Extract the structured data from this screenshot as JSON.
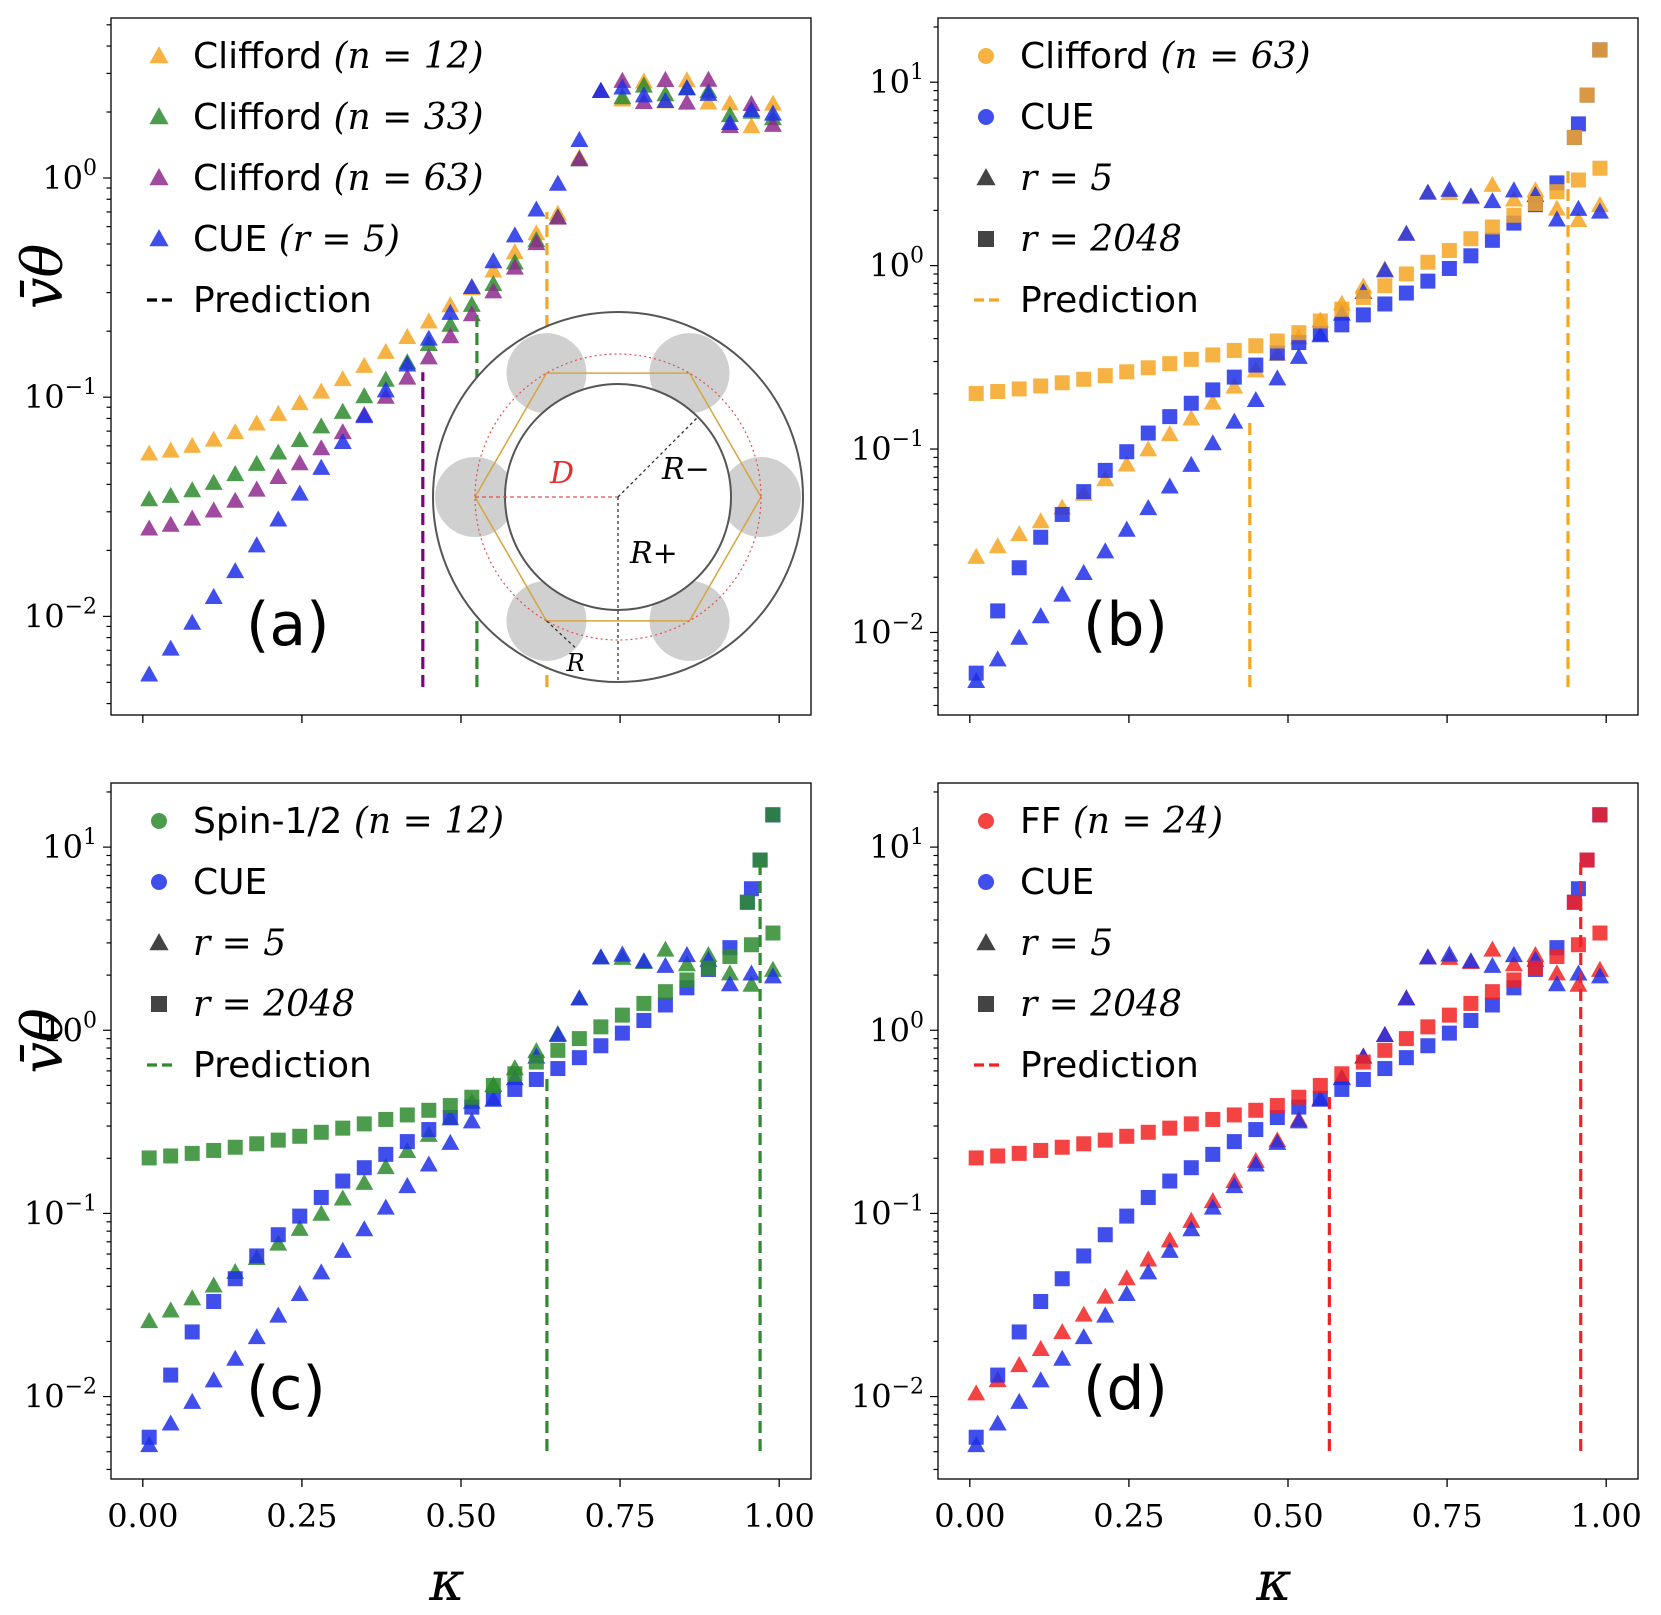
{
  "figure": {
    "ylabel": "v̄θ",
    "xlabel": "κ",
    "x_ticks": [
      "0.00",
      "0.25",
      "0.50",
      "0.75",
      "1.00"
    ]
  },
  "chart_data": [
    {
      "panel": "(a)",
      "type": "scatter",
      "xlim": [
        -0.05,
        1.05
      ],
      "ylim_log10": [
        -2.45,
        0.73
      ],
      "y_ticks": [
        {
          "base": "10",
          "exp": "0",
          "log": 0
        },
        {
          "base": "10",
          "exp": "−1",
          "log": -1
        },
        {
          "base": "10",
          "exp": "−2",
          "log": -2
        }
      ],
      "legend": [
        {
          "marker": "triangle",
          "color": "#f5a623",
          "text": "Clifford",
          "math": "(n = 12)"
        },
        {
          "marker": "triangle",
          "color": "#2e8b2e",
          "text": "Clifford",
          "math": "(n = 33)"
        },
        {
          "marker": "triangle",
          "color": "#8e2a8e",
          "text": "Clifford",
          "math": "(n = 63)"
        },
        {
          "marker": "triangle",
          "color": "#1f2fe8",
          "text": "CUE",
          "math": "(r = 5)"
        },
        {
          "marker": "dash",
          "color": "#000000",
          "text": "Prediction",
          "math": ""
        }
      ],
      "series": [
        {
          "name": "Clifford (n = 12)",
          "marker": "triangle",
          "color": "#f5a623",
          "kind": "clifford",
          "y0": 0.055,
          "y_knee": 0.72,
          "plateau": 2.5
        },
        {
          "name": "Clifford (n = 33)",
          "marker": "triangle",
          "color": "#2e8b2e",
          "kind": "clifford",
          "y0": 0.034,
          "y_knee": 0.7,
          "plateau": 2.5
        },
        {
          "name": "Clifford (n = 63)",
          "marker": "triangle",
          "color": "#8e2a8e",
          "kind": "clifford",
          "y0": 0.025,
          "y_knee": 0.7,
          "plateau": 2.5
        },
        {
          "name": "CUE (r = 5)",
          "marker": "triangle",
          "color": "#1f2fe8",
          "kind": "cue5",
          "y0": 0.005,
          "y_knee": 0.7,
          "plateau": 2.4
        }
      ],
      "predictions": [
        {
          "x": 0.44,
          "y_top": 0.13,
          "color": "#800080"
        },
        {
          "x": 0.525,
          "y_top": 0.25,
          "color": "#2e8b2e"
        },
        {
          "x": 0.635,
          "y_top": 0.7,
          "color": "#f5a623"
        }
      ],
      "inset": {
        "label_D": "D",
        "label_Rminus": "R−",
        "label_Rplus": "R+",
        "label_R": "R"
      }
    },
    {
      "panel": "(b)",
      "type": "scatter",
      "xlim": [
        -0.05,
        1.05
      ],
      "ylim_log10": [
        -2.45,
        1.35
      ],
      "y_ticks": [
        {
          "base": "10",
          "exp": "1",
          "log": 1
        },
        {
          "base": "10",
          "exp": "0",
          "log": 0
        },
        {
          "base": "10",
          "exp": "−1",
          "log": -1
        },
        {
          "base": "10",
          "exp": "−2",
          "log": -2
        }
      ],
      "legend": [
        {
          "marker": "circle",
          "color": "#f5a623",
          "text": "Clifford",
          "math": "(n = 63)"
        },
        {
          "marker": "circle",
          "color": "#1f2fe8",
          "text": "CUE",
          "math": ""
        },
        {
          "marker": "triangle",
          "color": "#222222",
          "text": "",
          "math": "r = 5"
        },
        {
          "marker": "square",
          "color": "#222222",
          "text": "",
          "math": "r = 2048"
        },
        {
          "marker": "dash",
          "color": "#f5a623",
          "text": "Prediction",
          "math": ""
        }
      ],
      "series": [
        {
          "name": "Clifford r=5",
          "marker": "triangle",
          "color": "#f5a623",
          "kind": "model5",
          "y0": 0.025
        },
        {
          "name": "CUE r=5",
          "marker": "triangle",
          "color": "#1f2fe8",
          "kind": "cue5",
          "y0": 0.005
        },
        {
          "name": "CUE r=2048",
          "marker": "square",
          "color": "#1f2fe8",
          "kind": "cue2048",
          "y0": 0.006
        },
        {
          "name": "Clifford r=2048",
          "marker": "square",
          "color": "#f5a623",
          "kind": "model2048",
          "y0": 0.2
        }
      ],
      "predictions": [
        {
          "x": 0.44,
          "y_top": 0.14,
          "color": "#f5a623"
        },
        {
          "x": 0.94,
          "y_top": 3.4,
          "color": "#f5a623"
        }
      ]
    },
    {
      "panel": "(c)",
      "type": "scatter",
      "xlim": [
        -0.05,
        1.05
      ],
      "ylim_log10": [
        -2.45,
        1.35
      ],
      "y_ticks": [
        {
          "base": "10",
          "exp": "1",
          "log": 1
        },
        {
          "base": "10",
          "exp": "0",
          "log": 0
        },
        {
          "base": "10",
          "exp": "−1",
          "log": -1
        },
        {
          "base": "10",
          "exp": "−2",
          "log": -2
        }
      ],
      "legend": [
        {
          "marker": "circle",
          "color": "#2e8b2e",
          "text": "Spin-1/2",
          "math": "(n = 12)"
        },
        {
          "marker": "circle",
          "color": "#1f2fe8",
          "text": "CUE",
          "math": ""
        },
        {
          "marker": "triangle",
          "color": "#222222",
          "text": "",
          "math": "r = 5"
        },
        {
          "marker": "square",
          "color": "#222222",
          "text": "",
          "math": "r = 2048"
        },
        {
          "marker": "dash",
          "color": "#2e8b2e",
          "text": "Prediction",
          "math": ""
        }
      ],
      "series": [
        {
          "name": "Spin-1/2 r=5",
          "marker": "triangle",
          "color": "#2e8b2e",
          "kind": "model5",
          "y0": 0.025
        },
        {
          "name": "CUE r=5",
          "marker": "triangle",
          "color": "#1f2fe8",
          "kind": "cue5",
          "y0": 0.005
        },
        {
          "name": "CUE r=2048",
          "marker": "square",
          "color": "#1f2fe8",
          "kind": "cue2048",
          "y0": 0.006
        },
        {
          "name": "Spin-1/2 r=2048",
          "marker": "square",
          "color": "#2e8b2e",
          "kind": "model2048",
          "y0": 0.2
        }
      ],
      "predictions": [
        {
          "x": 0.635,
          "y_top": 0.55,
          "color": "#2e8b2e"
        },
        {
          "x": 0.97,
          "y_top": 8.5,
          "color": "#2e8b2e"
        }
      ]
    },
    {
      "panel": "(d)",
      "type": "scatter",
      "xlim": [
        -0.05,
        1.05
      ],
      "ylim_log10": [
        -2.45,
        1.35
      ],
      "y_ticks": [
        {
          "base": "10",
          "exp": "1",
          "log": 1
        },
        {
          "base": "10",
          "exp": "0",
          "log": 0
        },
        {
          "base": "10",
          "exp": "−1",
          "log": -1
        },
        {
          "base": "10",
          "exp": "−2",
          "log": -2
        }
      ],
      "legend": [
        {
          "marker": "circle",
          "color": "#f22222",
          "text": "FF",
          "math": "(n = 24)"
        },
        {
          "marker": "circle",
          "color": "#1f2fe8",
          "text": "CUE",
          "math": ""
        },
        {
          "marker": "triangle",
          "color": "#222222",
          "text": "",
          "math": "r = 5"
        },
        {
          "marker": "square",
          "color": "#222222",
          "text": "",
          "math": "r = 2048"
        },
        {
          "marker": "dash",
          "color": "#f22222",
          "text": "Prediction",
          "math": ""
        }
      ],
      "series": [
        {
          "name": "FF r=5",
          "marker": "triangle",
          "color": "#f22222",
          "kind": "model5",
          "y0": 0.01
        },
        {
          "name": "CUE r=5",
          "marker": "triangle",
          "color": "#1f2fe8",
          "kind": "cue5",
          "y0": 0.005
        },
        {
          "name": "CUE r=2048",
          "marker": "square",
          "color": "#1f2fe8",
          "kind": "cue2048",
          "y0": 0.006
        },
        {
          "name": "FF r=2048",
          "marker": "square",
          "color": "#f22222",
          "kind": "model2048",
          "y0": 0.2
        }
      ],
      "predictions": [
        {
          "x": 0.565,
          "y_top": 0.45,
          "color": "#f22222"
        },
        {
          "x": 0.96,
          "y_top": 8.5,
          "color": "#f22222"
        }
      ]
    }
  ]
}
